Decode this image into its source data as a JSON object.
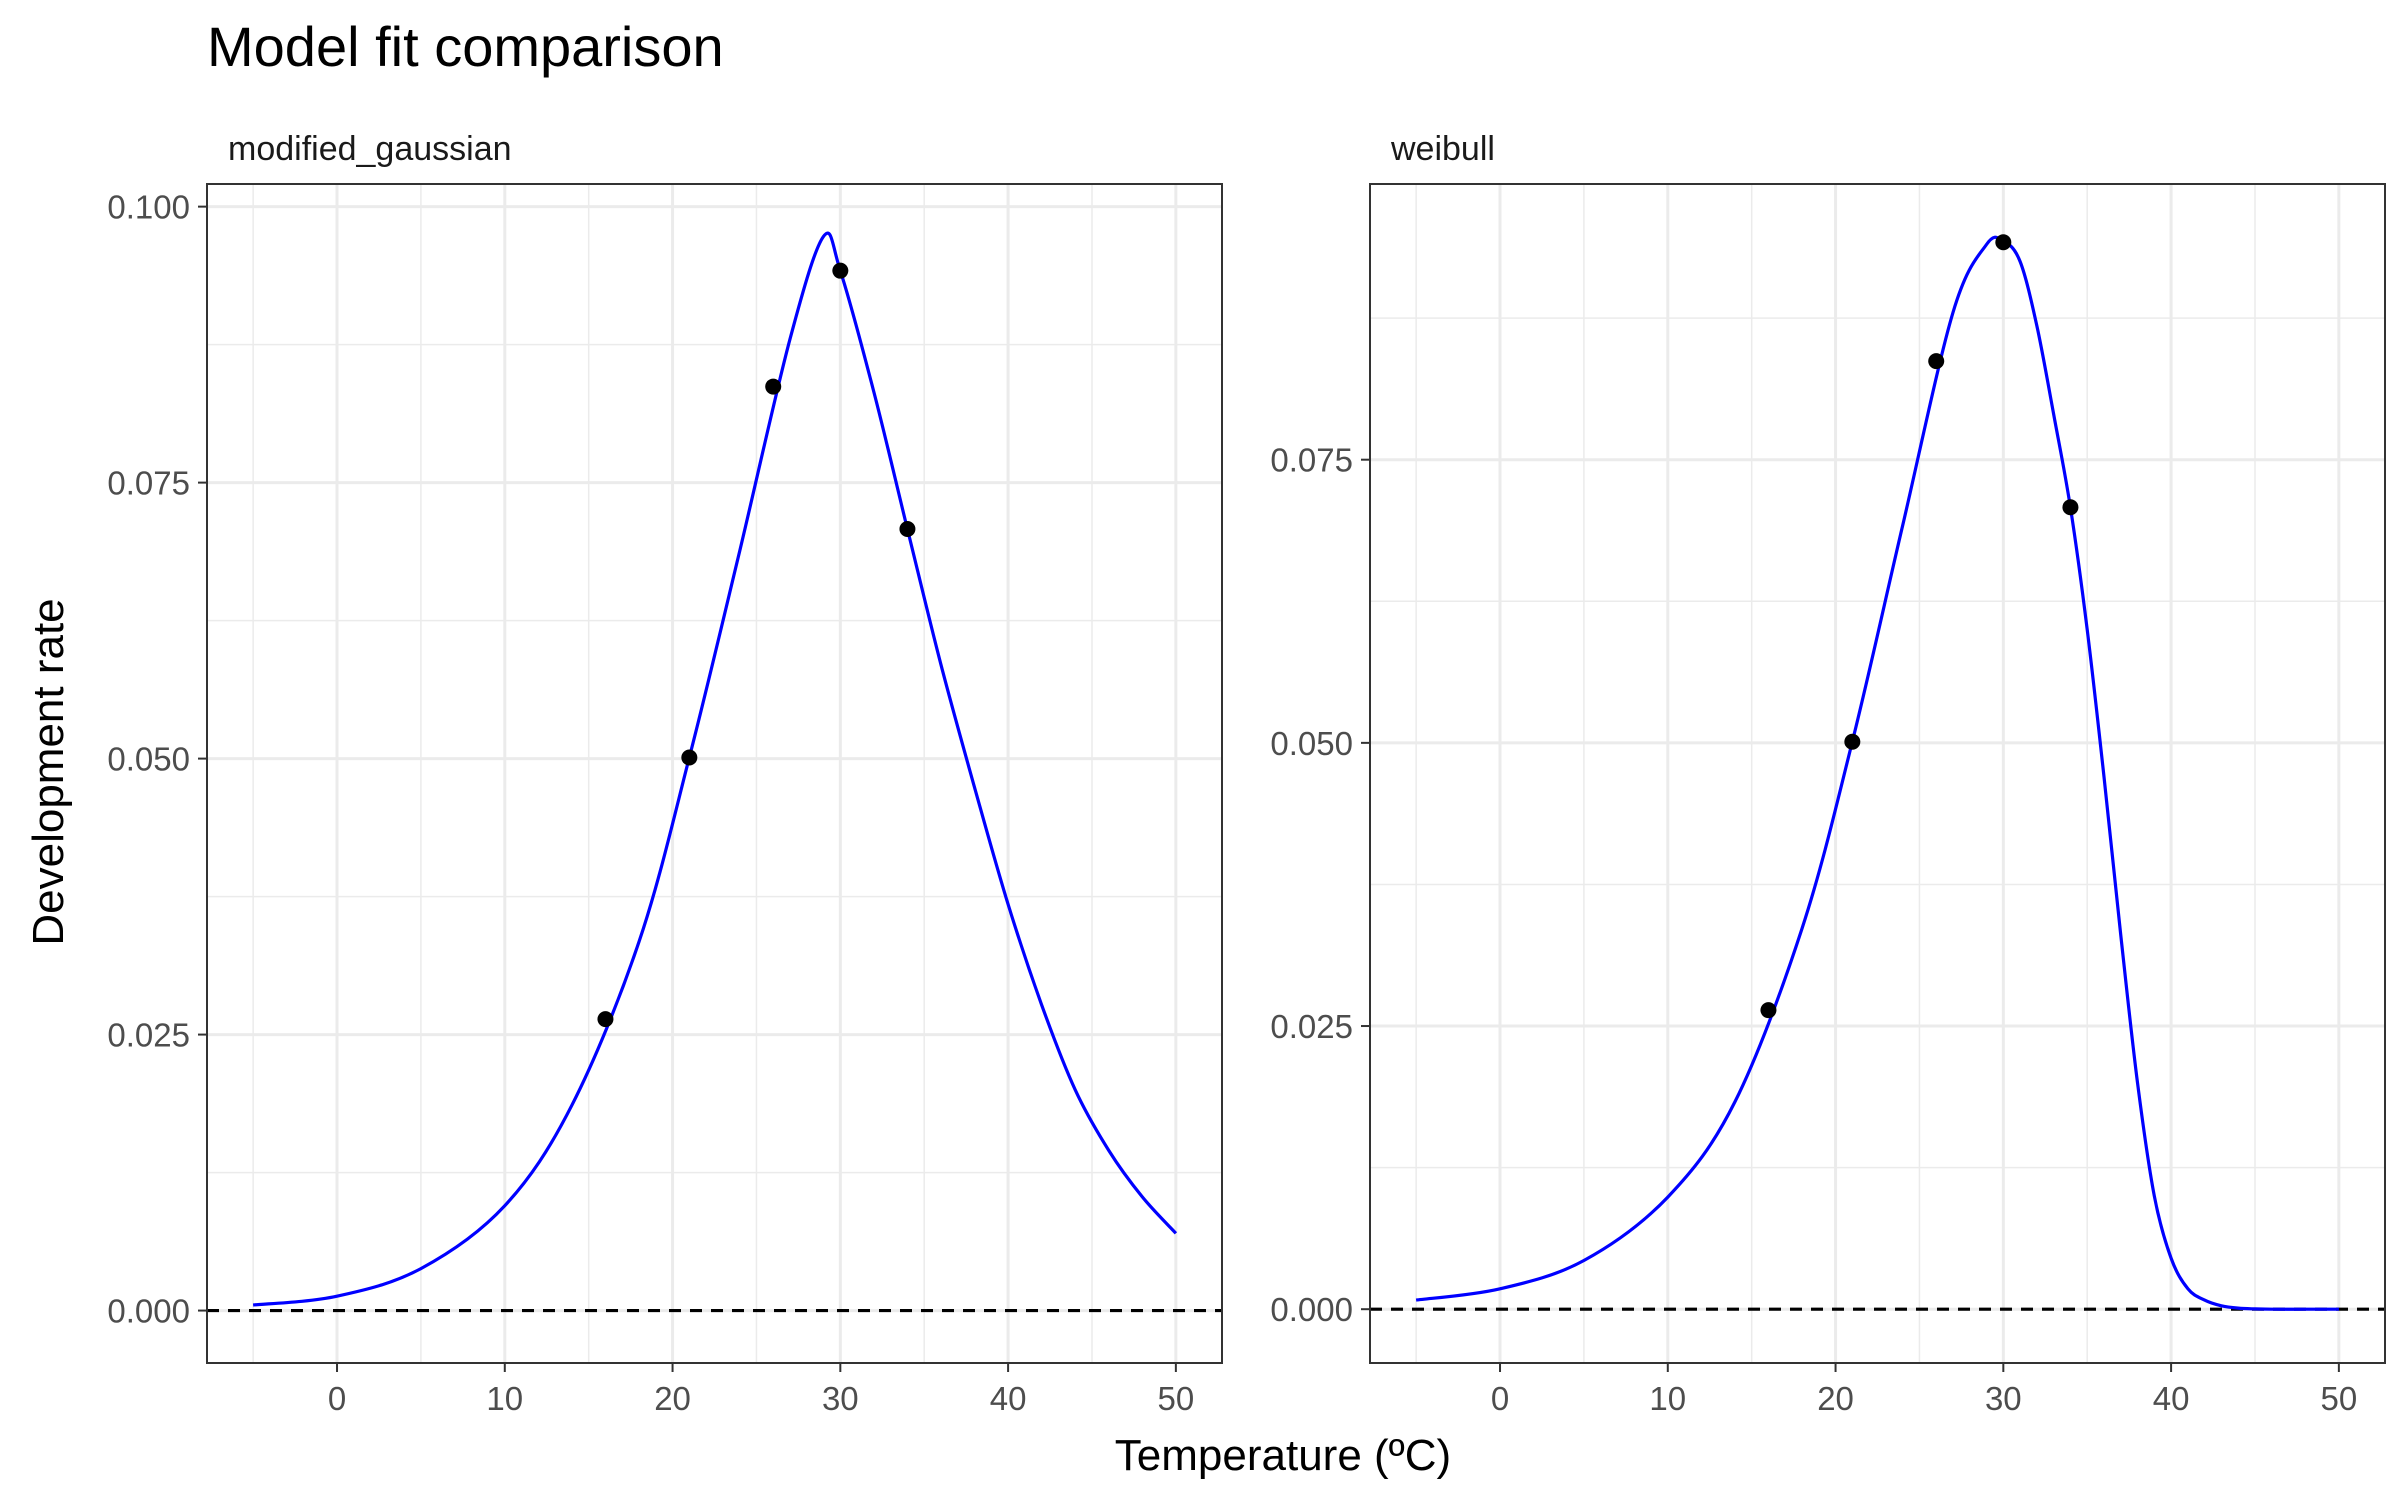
{
  "title": "Model fit comparison",
  "xlabel": "Temperature (ºC)",
  "ylabel": "Development rate",
  "chart_data": {
    "type": "line",
    "title": "Model fit comparison",
    "xlabel": "Temperature (ºC)",
    "ylabel": "Development rate",
    "legend": "none",
    "grid": true,
    "panels": [
      {
        "name": "modified_gaussian",
        "xlim": [
          -7.75,
          52.75
        ],
        "ylim": [
          -0.00475,
          0.10205
        ],
        "x_ticks": [
          0,
          10,
          20,
          30,
          40,
          50
        ],
        "x_tick_labels": [
          "0",
          "10",
          "20",
          "30",
          "40",
          "50"
        ],
        "y_ticks": [
          0,
          0.025,
          0.05,
          0.075,
          0.1
        ],
        "y_tick_labels": [
          "0.000",
          "0.025",
          "0.050",
          "0.075",
          "0.100"
        ],
        "hline": 0,
        "points": {
          "x": [
            16,
            21,
            26,
            30,
            34
          ],
          "y": [
            0.0264,
            0.0501,
            0.0837,
            0.0942,
            0.0708
          ]
        },
        "fit": {
          "name": "modified_gaussian",
          "x": [
            -5,
            0,
            5,
            10,
            14,
            18,
            21,
            24,
            27,
            29,
            30,
            32,
            34,
            36,
            38,
            40,
            42,
            44,
            46,
            48,
            50
          ],
          "y": [
            0.0005,
            0.0013,
            0.0038,
            0.0095,
            0.0186,
            0.0334,
            0.0501,
            0.0688,
            0.088,
            0.0973,
            0.0942,
            0.0832,
            0.0708,
            0.0585,
            0.0474,
            0.0368,
            0.0277,
            0.02,
            0.0145,
            0.0103,
            0.007
          ]
        }
      },
      {
        "name": "weibull",
        "xlim": [
          -7.75,
          52.75
        ],
        "ylim": [
          -0.00475,
          0.09934
        ],
        "x_ticks": [
          0,
          10,
          20,
          30,
          40,
          50
        ],
        "x_tick_labels": [
          "0",
          "10",
          "20",
          "30",
          "40",
          "50"
        ],
        "y_ticks": [
          0,
          0.025,
          0.05,
          0.075
        ],
        "y_tick_labels": [
          "0.000",
          "0.025",
          "0.050",
          "0.075"
        ],
        "hline": 0,
        "points": {
          "x": [
            16,
            21,
            26,
            30,
            34
          ],
          "y": [
            0.0264,
            0.0501,
            0.0837,
            0.0942,
            0.0708
          ]
        },
        "fit": {
          "name": "weibull",
          "x": [
            -5,
            0,
            5,
            10,
            14,
            18,
            21,
            24,
            27,
            29,
            30,
            31,
            32,
            33,
            34,
            35,
            36,
            37,
            38,
            39,
            40,
            41,
            42,
            43,
            44,
            45,
            46,
            48,
            50
          ],
          "y": [
            0.0008,
            0.0018,
            0.0043,
            0.0099,
            0.0183,
            0.0336,
            0.0501,
            0.0692,
            0.088,
            0.094,
            0.0943,
            0.0925,
            0.0868,
            0.079,
            0.0708,
            0.06,
            0.047,
            0.033,
            0.02,
            0.01,
            0.0045,
            0.0018,
            0.0008,
            0.0003,
            0.0001,
            3e-05,
            0.0,
            0.0,
            0.0
          ]
        }
      }
    ]
  }
}
